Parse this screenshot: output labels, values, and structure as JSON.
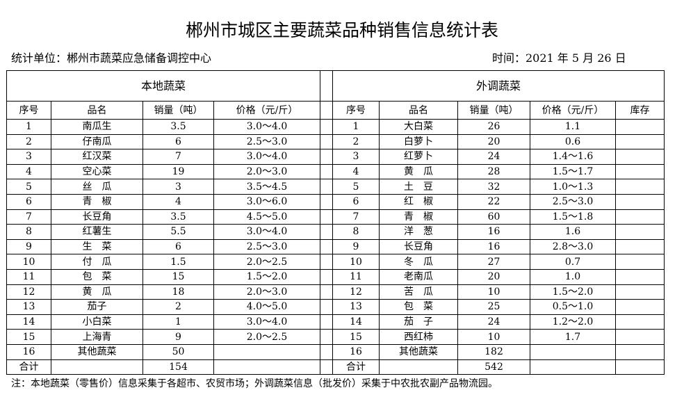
{
  "header": {
    "title": "郴州市城区主要蔬菜品种销售信息统计表",
    "unit": "统计单位：郴州市蔬菜应急储备调控中心",
    "date": "时间：2021 年 5 月 26 日"
  },
  "table": {
    "groups": [
      "本地蔬菜",
      "外调蔬菜"
    ],
    "columns": [
      "序号",
      "品名",
      "销量（吨）",
      "价格（元/斤）",
      "序号",
      "品名",
      "销量（吨）",
      "价格（元/斤）",
      "库存"
    ],
    "local": [
      {
        "no": "1",
        "name": "南瓜生",
        "qty": "3.5",
        "price": "3.0～4.0"
      },
      {
        "no": "2",
        "name": "仔南瓜",
        "qty": "6",
        "price": "2.5～3.0"
      },
      {
        "no": "3",
        "name": "红汉菜",
        "qty": "7",
        "price": "3.0～4.0"
      },
      {
        "no": "4",
        "name": "空心菜",
        "qty": "19",
        "price": "2.0～3.0"
      },
      {
        "no": "5",
        "name": "丝　瓜",
        "qty": "3",
        "price": "3.5～4.5"
      },
      {
        "no": "6",
        "name": "青　椒",
        "qty": "4",
        "price": "3.0～6.0"
      },
      {
        "no": "7",
        "name": "长豆角",
        "qty": "3.5",
        "price": "4.5～5.0"
      },
      {
        "no": "8",
        "name": "红薯生",
        "qty": "5.5",
        "price": "3.0～4.0"
      },
      {
        "no": "9",
        "name": "生　菜",
        "qty": "6",
        "price": "2.5～3.0"
      },
      {
        "no": "10",
        "name": "付　瓜",
        "qty": "1.5",
        "price": "2.0～2.5"
      },
      {
        "no": "11",
        "name": "包　菜",
        "qty": "15",
        "price": "1.5～2.0"
      },
      {
        "no": "12",
        "name": "黄　瓜",
        "qty": "18",
        "price": "2.0～3.0"
      },
      {
        "no": "13",
        "name": "茄子",
        "qty": "2",
        "price": "4.0～5.0"
      },
      {
        "no": "14",
        "name": "小白菜",
        "qty": "1",
        "price": "3.0～4.0"
      },
      {
        "no": "15",
        "name": "上海青",
        "qty": "9",
        "price": "2.0～2.5"
      },
      {
        "no": "16",
        "name": "其他蔬菜",
        "qty": "50"
      },
      {
        "no": "合计",
        "qty": "154"
      }
    ],
    "remote": [
      {
        "no": "1",
        "name": "大白菜",
        "qty": "26",
        "price": "1.1"
      },
      {
        "no": "2",
        "name": "白萝卜",
        "qty": "20",
        "price": "0.6"
      },
      {
        "no": "3",
        "name": "红萝卜",
        "qty": "24",
        "price": "1.4～1.6"
      },
      {
        "no": "4",
        "name": "黄　瓜",
        "qty": "28",
        "price": "1.5～1.7"
      },
      {
        "no": "5",
        "name": "土　豆",
        "qty": "32",
        "price": "1.0～1.3"
      },
      {
        "no": "6",
        "name": "红　椒",
        "qty": "22",
        "price": "2.5～3.0"
      },
      {
        "no": "7",
        "name": "青　椒",
        "qty": "60",
        "price": "1.5～1.8"
      },
      {
        "no": "8",
        "name": "洋　葱",
        "qty": "16",
        "price": "1.6"
      },
      {
        "no": "9",
        "name": "长豆角",
        "qty": "16",
        "price": "2.8～3.0"
      },
      {
        "no": "10",
        "name": "冬　瓜",
        "qty": "27",
        "price": "0.7"
      },
      {
        "no": "11",
        "name": "老南瓜",
        "qty": "20",
        "price": "1.0"
      },
      {
        "no": "12",
        "name": "苦　瓜",
        "qty": "10",
        "price": "1.5～2.0"
      },
      {
        "no": "13",
        "name": "包　菜",
        "qty": "25",
        "price": "0.5～1.0"
      },
      {
        "no": "14",
        "name": "茄　子",
        "qty": "24",
        "price": "1.2～2.0"
      },
      {
        "no": "15",
        "name": "西红柿",
        "qty": "10",
        "price": "1.7"
      },
      {
        "no": "16",
        "name": "其他蔬菜",
        "qty": "182"
      },
      {
        "no": "合计",
        "qty": "542"
      }
    ]
  },
  "note": "注：本地蔬菜（零售价）信息采集于各超市、农贸市场；外调蔬菜信息（批发价）采集于中农批农副产品物流园。"
}
